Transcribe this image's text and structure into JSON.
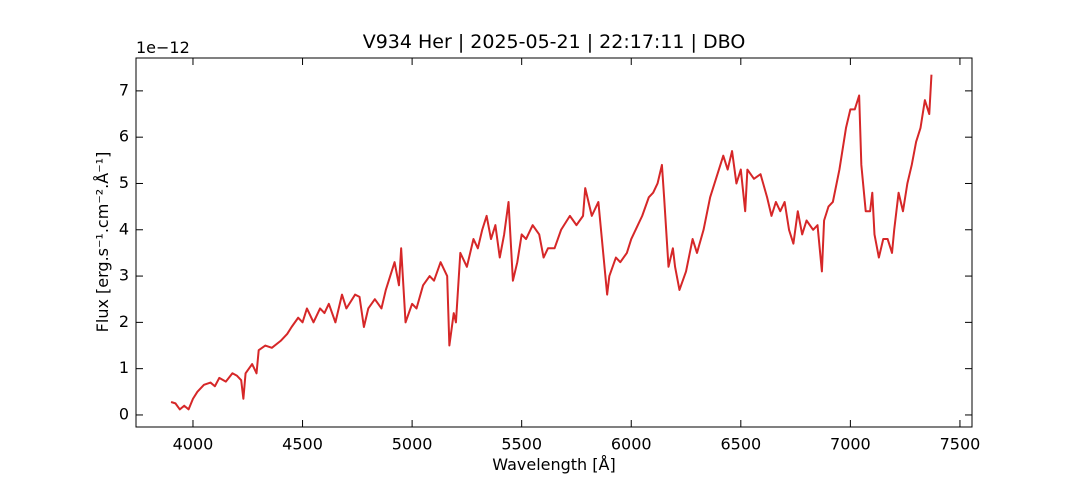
{
  "chart_data": {
    "type": "line",
    "title": "V934 Her | 2025-05-21 | 22:17:11 | DBO",
    "xlabel": "Wavelength [Å]",
    "ylabel": "Flux [erg.s⁻¹.cm⁻².Å⁻¹]",
    "y_offset_label": "1e−12",
    "xlim": [
      3740,
      7555
    ],
    "ylim": [
      -0.26,
      7.71
    ],
    "xticks": [
      4000,
      4500,
      5000,
      5500,
      6000,
      6500,
      7000,
      7500
    ],
    "yticks": [
      0,
      1,
      2,
      3,
      4,
      5,
      6,
      7
    ],
    "tick_direction": "in",
    "mirror_ticks": true,
    "series": [
      {
        "color": "#d62728",
        "x": [
          3900,
          3920,
          3940,
          3960,
          3980,
          4000,
          4020,
          4050,
          4080,
          4100,
          4120,
          4150,
          4180,
          4200,
          4220,
          4230,
          4240,
          4270,
          4290,
          4300,
          4330,
          4360,
          4400,
          4430,
          4450,
          4480,
          4500,
          4520,
          4550,
          4580,
          4600,
          4620,
          4650,
          4680,
          4700,
          4740,
          4760,
          4780,
          4800,
          4830,
          4860,
          4880,
          4920,
          4940,
          4950,
          4970,
          5000,
          5020,
          5050,
          5080,
          5100,
          5130,
          5160,
          5170,
          5190,
          5200,
          5220,
          5250,
          5280,
          5300,
          5320,
          5340,
          5360,
          5380,
          5400,
          5420,
          5440,
          5460,
          5480,
          5500,
          5520,
          5550,
          5580,
          5600,
          5620,
          5650,
          5680,
          5720,
          5750,
          5780,
          5790,
          5820,
          5850,
          5870,
          5890,
          5900,
          5930,
          5950,
          5980,
          6000,
          6020,
          6050,
          6080,
          6100,
          6120,
          6140,
          6150,
          6170,
          6190,
          6200,
          6220,
          6250,
          6280,
          6300,
          6330,
          6360,
          6380,
          6400,
          6420,
          6440,
          6460,
          6480,
          6500,
          6520,
          6530,
          6560,
          6590,
          6620,
          6640,
          6660,
          6680,
          6700,
          6720,
          6740,
          6760,
          6780,
          6800,
          6830,
          6850,
          6870,
          6880,
          6900,
          6920,
          6950,
          6980,
          7000,
          7020,
          7040,
          7050,
          7070,
          7090,
          7100,
          7110,
          7130,
          7150,
          7170,
          7190,
          7200,
          7220,
          7240,
          7260,
          7280,
          7300,
          7320,
          7340,
          7360,
          7370
        ],
        "values": [
          0.28,
          0.25,
          0.12,
          0.2,
          0.12,
          0.35,
          0.5,
          0.65,
          0.7,
          0.62,
          0.8,
          0.72,
          0.9,
          0.85,
          0.75,
          0.35,
          0.9,
          1.1,
          0.9,
          1.4,
          1.5,
          1.45,
          1.6,
          1.75,
          1.9,
          2.1,
          2.0,
          2.3,
          2.0,
          2.3,
          2.2,
          2.4,
          2.0,
          2.6,
          2.3,
          2.6,
          2.55,
          1.9,
          2.3,
          2.5,
          2.3,
          2.7,
          3.3,
          2.8,
          3.6,
          2.0,
          2.4,
          2.3,
          2.8,
          3.0,
          2.9,
          3.3,
          3.0,
          1.5,
          2.2,
          2.0,
          3.5,
          3.2,
          3.8,
          3.6,
          4.0,
          4.3,
          3.8,
          4.1,
          3.4,
          3.9,
          4.6,
          2.9,
          3.3,
          3.9,
          3.8,
          4.1,
          3.9,
          3.4,
          3.6,
          3.6,
          4.0,
          4.3,
          4.1,
          4.3,
          4.9,
          4.3,
          4.6,
          3.6,
          2.6,
          3.0,
          3.4,
          3.3,
          3.5,
          3.8,
          4.0,
          4.3,
          4.7,
          4.8,
          5.0,
          5.4,
          4.7,
          3.2,
          3.6,
          3.2,
          2.7,
          3.1,
          3.8,
          3.5,
          4.0,
          4.7,
          5.0,
          5.3,
          5.6,
          5.3,
          5.7,
          5.0,
          5.3,
          4.4,
          5.3,
          5.1,
          5.2,
          4.7,
          4.3,
          4.6,
          4.4,
          4.6,
          4.0,
          3.7,
          4.4,
          3.9,
          4.2,
          4.0,
          4.1,
          3.1,
          4.2,
          4.5,
          4.6,
          5.3,
          6.2,
          6.6,
          6.6,
          6.9,
          5.4,
          4.4,
          4.4,
          4.8,
          3.9,
          3.4,
          3.8,
          3.8,
          3.5,
          4.0,
          4.8,
          4.4,
          5.0,
          5.4,
          5.9,
          6.2,
          6.8,
          6.5,
          7.35
        ]
      }
    ]
  }
}
